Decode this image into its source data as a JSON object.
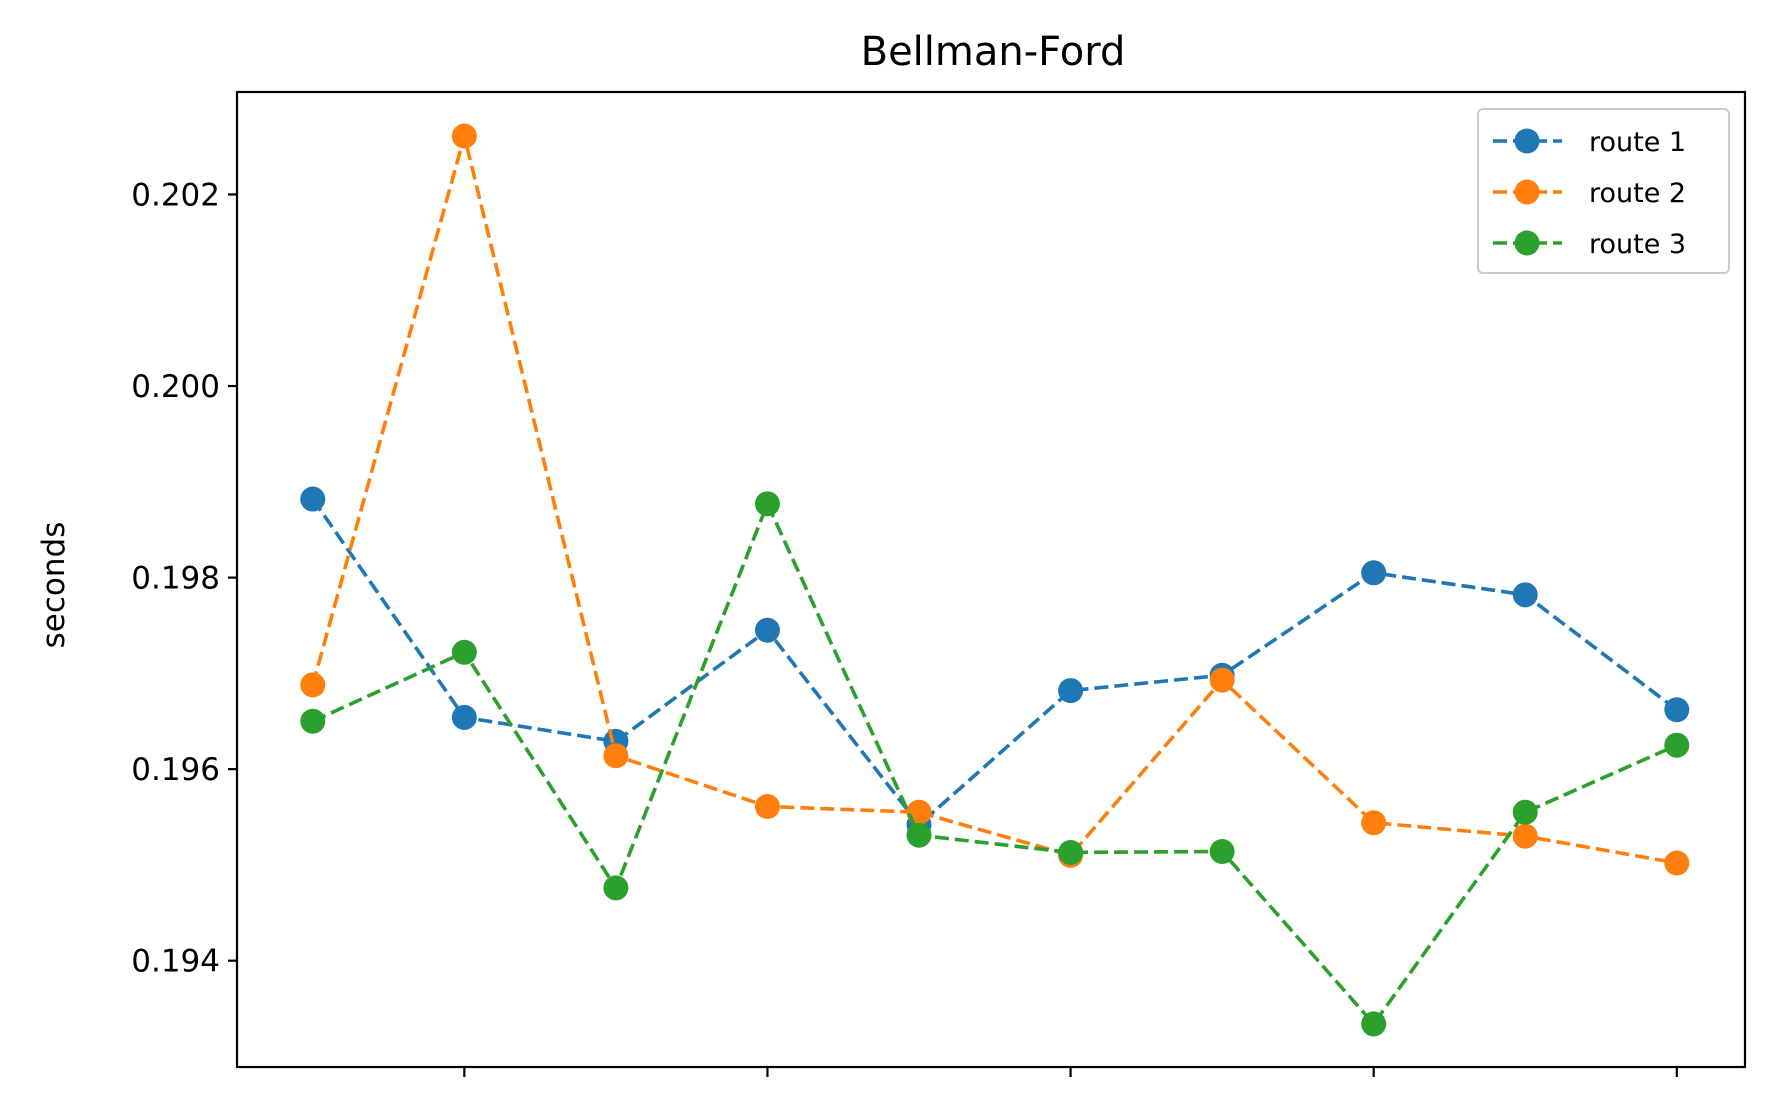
{
  "chart_data": {
    "type": "line",
    "title": "Bellman-Ford",
    "xlabel": "",
    "ylabel": "seconds",
    "x": [
      1,
      2,
      3,
      4,
      5,
      6,
      7,
      8,
      9,
      10
    ],
    "xlim": [
      0.5,
      10.45
    ],
    "ylim": [
      0.19289,
      0.20307
    ],
    "yticks": [
      {
        "value": 0.194,
        "label": "0.194"
      },
      {
        "value": 0.196,
        "label": "0.196"
      },
      {
        "value": 0.198,
        "label": "0.198"
      },
      {
        "value": 0.2,
        "label": "0.200"
      },
      {
        "value": 0.202,
        "label": "0.202"
      }
    ],
    "xticks": [
      2,
      4,
      6,
      8,
      10
    ],
    "grid": false,
    "legend_position": "top-right",
    "series": [
      {
        "name": "route 1",
        "color": "#1f77b4",
        "values": [
          0.19882,
          0.19654,
          0.19629,
          0.19745,
          0.19542,
          0.19682,
          0.19698,
          0.19805,
          0.19782,
          0.19662
        ]
      },
      {
        "name": "route 2",
        "color": "#ff7f0e",
        "values": [
          0.19688,
          0.20261,
          0.19614,
          0.19561,
          0.19555,
          0.1951,
          0.19693,
          0.19544,
          0.1953,
          0.19502
        ]
      },
      {
        "name": "route 3",
        "color": "#2ca02c",
        "values": [
          0.1965,
          0.19722,
          0.19476,
          0.19877,
          0.19531,
          0.19513,
          0.19514,
          0.19334,
          0.19555,
          0.19625
        ]
      }
    ]
  }
}
